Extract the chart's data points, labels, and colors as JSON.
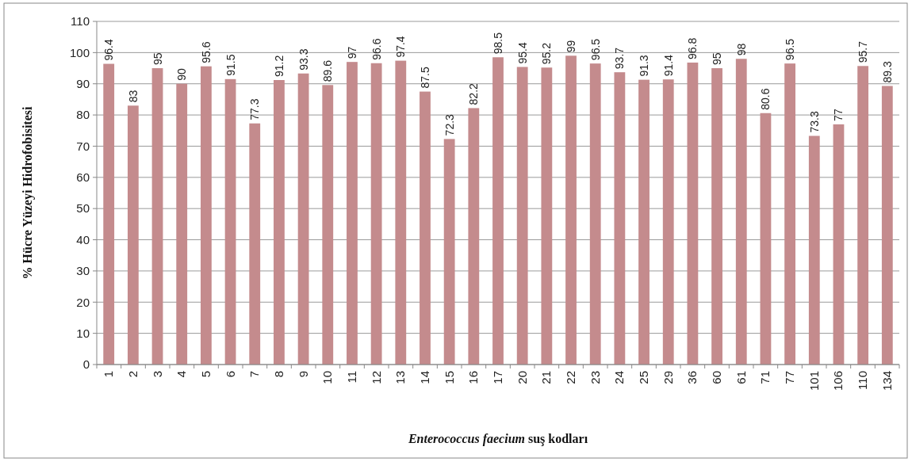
{
  "chart_data": {
    "type": "bar",
    "xlabel": "Enterococcus faecium suş kodları",
    "ylabel": "% Hücre Yüzeyi Hidrofobisitesi",
    "categories": [
      "1",
      "2",
      "3",
      "4",
      "5",
      "6",
      "7",
      "8",
      "9",
      "10",
      "11",
      "12",
      "13",
      "14",
      "15",
      "16",
      "17",
      "20",
      "21",
      "22",
      "23",
      "24",
      "25",
      "29",
      "36",
      "60",
      "61",
      "71",
      "77",
      "101",
      "106",
      "110",
      "134"
    ],
    "values": [
      96.4,
      83,
      95,
      90,
      95.6,
      91.5,
      77.3,
      91.2,
      93.3,
      89.6,
      97,
      96.6,
      97.4,
      87.5,
      72.3,
      82.2,
      98.5,
      95.4,
      95.2,
      99,
      96.5,
      93.7,
      91.3,
      91.4,
      96.8,
      95,
      98,
      80.6,
      96.5,
      73.3,
      77,
      95.7,
      89.3
    ],
    "color": "#c48b8d",
    "ylim": [
      0,
      110
    ],
    "yticks": [
      0,
      10,
      20,
      30,
      40,
      50,
      60,
      70,
      80,
      90,
      100,
      110
    ],
    "grid": "y",
    "data_labels": true
  }
}
